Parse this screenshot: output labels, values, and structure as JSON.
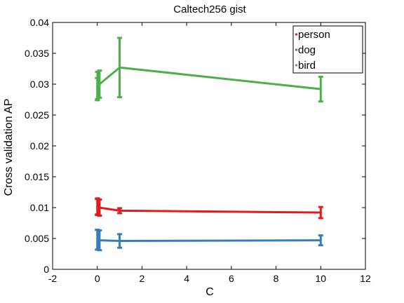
{
  "chart_data": {
    "type": "line",
    "title": "Caltech256 gist",
    "xlabel": "C",
    "ylabel": "Cross validation AP",
    "xlim": [
      -2,
      12
    ],
    "ylim": [
      0,
      0.04
    ],
    "x_ticks": [
      "-2",
      "0",
      "2",
      "4",
      "6",
      "8",
      "10",
      "12"
    ],
    "y_ticks": [
      "0",
      "0.005",
      "0.01",
      "0.015",
      "0.02",
      "0.025",
      "0.03",
      "0.035",
      "0.04"
    ],
    "grid": false,
    "legend_position": "top-right",
    "x": [
      0.001,
      0.01,
      0.1,
      1,
      10
    ],
    "series": [
      {
        "name": "person",
        "color": "#e41a1c",
        "values": [
          0.0101,
          0.0102,
          0.01,
          0.0095,
          0.0092
        ],
        "error": [
          0.0013,
          0.0013,
          0.0013,
          0.0004,
          0.0009
        ]
      },
      {
        "name": "dog",
        "color": "#377eb8",
        "values": [
          0.0048,
          0.0048,
          0.0047,
          0.0046,
          0.0047
        ],
        "error": [
          0.0016,
          0.0016,
          0.0016,
          0.0011,
          0.0008
        ]
      },
      {
        "name": "bird",
        "color": "#4daf4a",
        "values": [
          0.0292,
          0.0298,
          0.03,
          0.0327,
          0.0292
        ],
        "error": [
          0.0018,
          0.0022,
          0.0022,
          0.0048,
          0.002
        ]
      }
    ]
  }
}
